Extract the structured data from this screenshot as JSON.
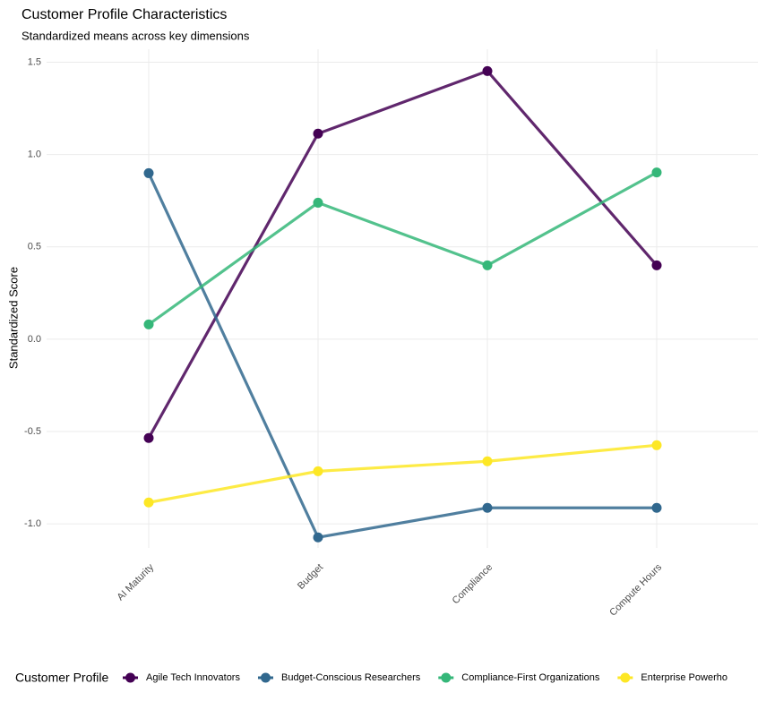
{
  "chart_data": {
    "type": "line",
    "title": "Customer Profile Characteristics",
    "subtitle": "Standardized means across key dimensions",
    "y_label": "Standardized Score",
    "legend_title": "Customer Profile",
    "legend_position": "bottom",
    "categories": [
      "AI Maturity",
      "Budget",
      "Compliance",
      "Compute Hours"
    ],
    "series": [
      {
        "name": "Agile Tech Innovators",
        "color": "#440154",
        "values": [
          -0.535,
          1.113,
          1.452,
          0.4
        ]
      },
      {
        "name": "Budget-Conscious Researchers",
        "color": "#31688e",
        "values": [
          0.899,
          -1.073,
          -0.913,
          -0.913
        ]
      },
      {
        "name": "Compliance-First Organizations",
        "color": "#35b779",
        "values": [
          0.08,
          0.739,
          0.4,
          0.903
        ]
      },
      {
        "name": "Enterprise Powerho",
        "color": "#fde725",
        "values": [
          -0.884,
          -0.715,
          -0.661,
          -0.574
        ]
      }
    ],
    "ylim": [
      -1.13,
      1.57
    ],
    "yticks": [
      {
        "value": -1,
        "label": "-1.0"
      },
      -0.5,
      {
        "value": 0,
        "label": "0.0"
      },
      0.5,
      {
        "value": 1,
        "label": "1.0"
      },
      1.5
    ],
    "grid": true
  }
}
